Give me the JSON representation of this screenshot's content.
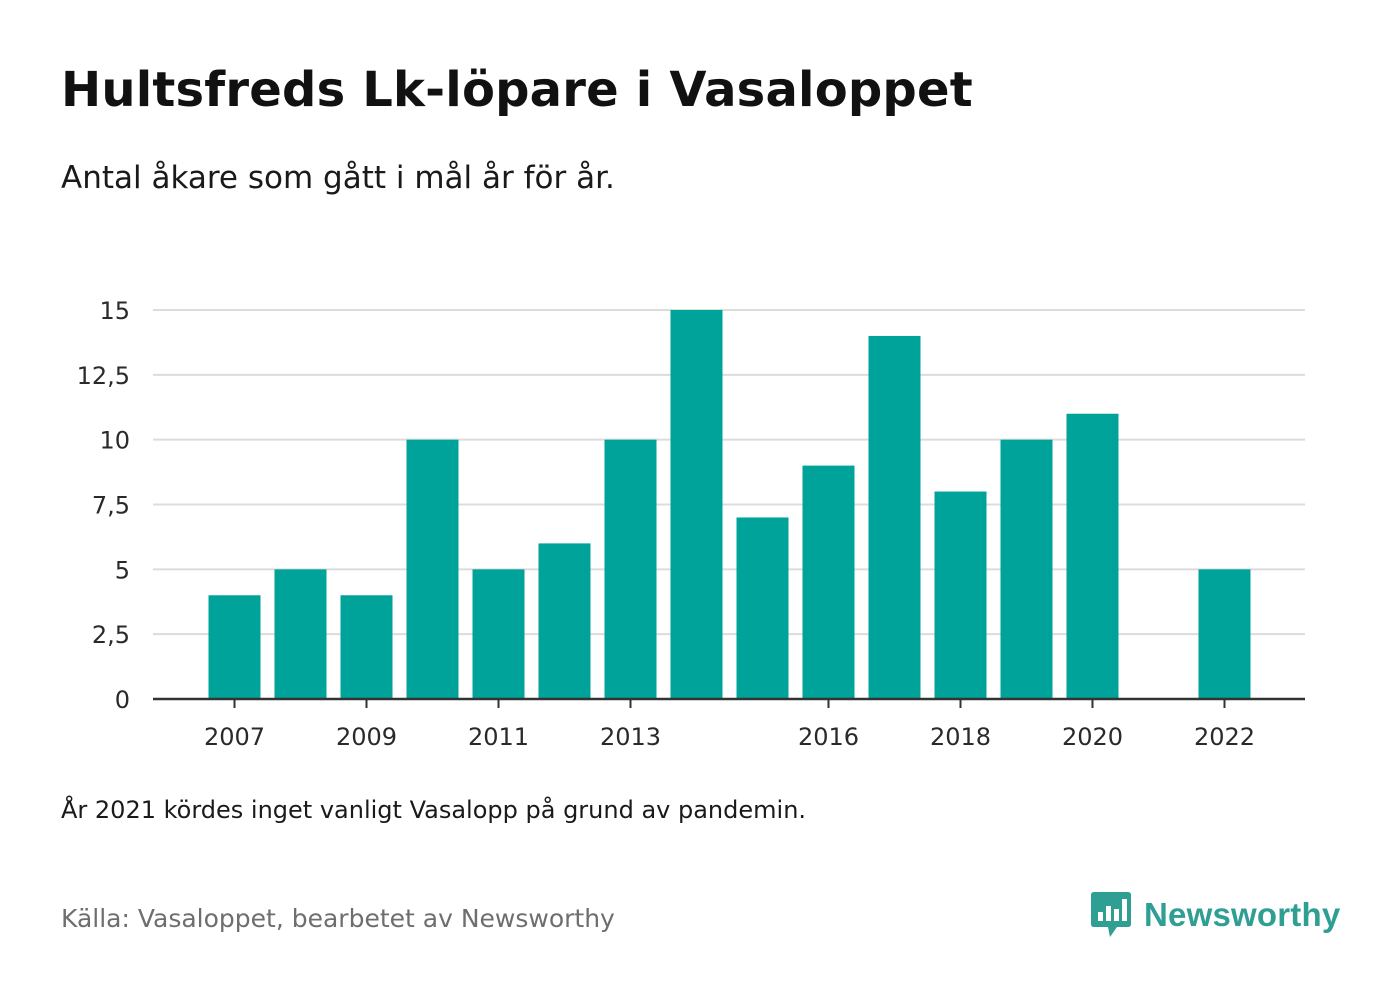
{
  "title": "Hultsfreds Lk-löpare i Vasaloppet",
  "subtitle": "Antal åkare som gått i mål år för år.",
  "note": "År 2021 kördes inget vanligt Vasalopp på grund av pandemin.",
  "source": "Källa: Vasaloppet, bearbetet av Newsworthy",
  "brand": {
    "name": "Newsworthy",
    "icon": "newsworthy-logo-icon"
  },
  "colors": {
    "bar": "#00a39a",
    "grid": "#dcdcdc",
    "axis": "#333333",
    "brand": "#2f9f94"
  },
  "chart_data": {
    "type": "bar",
    "categories": [
      "2007",
      "2008",
      "2009",
      "2010",
      "2011",
      "2012",
      "2013",
      "2014",
      "2015",
      "2016",
      "2017",
      "2018",
      "2019",
      "2020",
      "2021",
      "2022"
    ],
    "values": [
      4,
      5,
      4,
      10,
      5,
      6,
      10,
      15,
      7,
      9,
      14,
      8,
      10,
      11,
      null,
      5
    ],
    "x_tick_labels": [
      "2007",
      "2009",
      "2011",
      "2013",
      "2016",
      "2018",
      "2020",
      "2022"
    ],
    "y_ticks": [
      "0",
      "2,5",
      "5",
      "7,5",
      "10",
      "12,5",
      "15"
    ],
    "y_tick_values": [
      0,
      2.5,
      5,
      7.5,
      10,
      12.5,
      15
    ],
    "ylim": [
      0,
      15
    ],
    "grid": true,
    "xlabel": "",
    "ylabel": ""
  }
}
